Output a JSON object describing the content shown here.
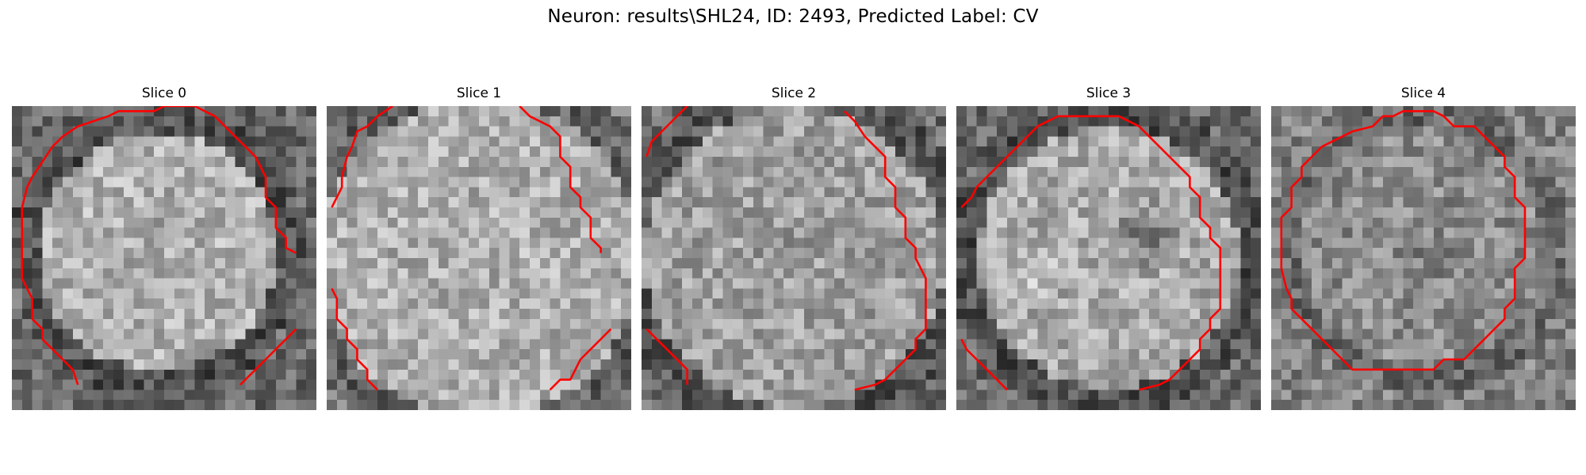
{
  "figure": {
    "title": "Neuron: results\\SHL24, ID: 2493, Predicted Label: CV",
    "panels": [
      {
        "title": "Slice 0"
      },
      {
        "title": "Slice 1"
      },
      {
        "title": "Slice 2"
      },
      {
        "title": "Slice 3"
      },
      {
        "title": "Slice 4"
      }
    ],
    "contour_color": "#ff0000"
  }
}
